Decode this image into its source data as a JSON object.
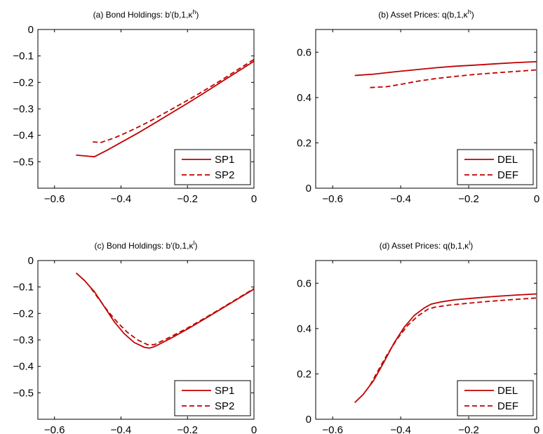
{
  "chart_data": [
    {
      "type": "line",
      "title": "(a) Bond Holdings: b′(b,1,κ",
      "title_sup": "h",
      "title_end": ")",
      "xlim": [
        -0.65,
        0
      ],
      "ylim": [
        -0.6,
        0
      ],
      "xticks": [
        -0.6,
        -0.4,
        -0.2,
        0
      ],
      "xtick_labels": [
        "−0.6",
        "−0.4",
        "−0.2",
        "0"
      ],
      "yticks": [
        0,
        -0.1,
        -0.2,
        -0.3,
        -0.4,
        -0.5
      ],
      "ytick_labels": [
        "0",
        "−0.1",
        "−0.2",
        "−0.3",
        "−0.4",
        "−0.5"
      ],
      "legend": "bottom-right",
      "color": "#c00000",
      "series": [
        {
          "name": "SP1",
          "style": "solid",
          "x": [
            -0.535,
            -0.48,
            -0.44,
            -0.4,
            -0.35,
            -0.3,
            -0.25,
            -0.2,
            -0.15,
            -0.1,
            -0.05,
            0
          ],
          "y": [
            -0.475,
            -0.481,
            -0.455,
            -0.427,
            -0.392,
            -0.355,
            -0.317,
            -0.279,
            -0.24,
            -0.2,
            -0.16,
            -0.12
          ]
        },
        {
          "name": "SP2",
          "style": "dashed",
          "x": [
            -0.485,
            -0.46,
            -0.42,
            -0.38,
            -0.34,
            -0.3,
            -0.25,
            -0.2,
            -0.15,
            -0.1,
            -0.05,
            0
          ],
          "y": [
            -0.425,
            -0.427,
            -0.41,
            -0.388,
            -0.364,
            -0.338,
            -0.303,
            -0.268,
            -0.231,
            -0.193,
            -0.153,
            -0.113
          ]
        }
      ]
    },
    {
      "type": "line",
      "title": "(b) Asset Prices: q(b,1,κ",
      "title_sup": "h",
      "title_end": ")",
      "xlim": [
        -0.65,
        0
      ],
      "ylim": [
        0,
        0.7
      ],
      "xticks": [
        -0.6,
        -0.4,
        -0.2,
        0
      ],
      "xtick_labels": [
        "−0.6",
        "−0.4",
        "−0.2",
        "0"
      ],
      "yticks": [
        0,
        0.2,
        0.4,
        0.6
      ],
      "ytick_labels": [
        "0",
        "0.2",
        "0.4",
        "0.6"
      ],
      "legend": "bottom-right",
      "color": "#c00000",
      "series": [
        {
          "name": "DEL",
          "style": "solid",
          "x": [
            -0.535,
            -0.48,
            -0.42,
            -0.36,
            -0.3,
            -0.24,
            -0.18,
            -0.12,
            -0.06,
            0
          ],
          "y": [
            0.497,
            0.503,
            0.513,
            0.522,
            0.531,
            0.538,
            0.543,
            0.549,
            0.554,
            0.558
          ]
        },
        {
          "name": "DEF",
          "style": "dashed",
          "x": [
            -0.49,
            -0.44,
            -0.4,
            -0.35,
            -0.3,
            -0.24,
            -0.18,
            -0.12,
            -0.06,
            0
          ],
          "y": [
            0.444,
            0.448,
            0.458,
            0.472,
            0.483,
            0.493,
            0.502,
            0.509,
            0.515,
            0.522
          ]
        }
      ]
    },
    {
      "type": "line",
      "title": "(c) Bond Holdings: b′(b,1,κ",
      "title_sup": "l",
      "title_end": ")",
      "xlim": [
        -0.65,
        0
      ],
      "ylim": [
        -0.6,
        0
      ],
      "xticks": [
        -0.6,
        -0.4,
        -0.2,
        0
      ],
      "xtick_labels": [
        "−0.6",
        "−0.4",
        "−0.2",
        "0"
      ],
      "yticks": [
        0,
        -0.1,
        -0.2,
        -0.3,
        -0.4,
        -0.5
      ],
      "ytick_labels": [
        "0",
        "−0.1",
        "−0.2",
        "−0.3",
        "−0.4",
        "−0.5"
      ],
      "legend": "bottom-right",
      "color": "#c00000",
      "series": [
        {
          "name": "SP1",
          "style": "solid",
          "x": [
            -0.535,
            -0.51,
            -0.48,
            -0.45,
            -0.42,
            -0.39,
            -0.36,
            -0.33,
            -0.315,
            -0.3,
            -0.25,
            -0.2,
            -0.15,
            -0.1,
            -0.05,
            0
          ],
          "y": [
            -0.047,
            -0.075,
            -0.118,
            -0.175,
            -0.232,
            -0.277,
            -0.31,
            -0.328,
            -0.331,
            -0.326,
            -0.294,
            -0.259,
            -0.222,
            -0.184,
            -0.146,
            -0.108
          ]
        },
        {
          "name": "SP2",
          "style": "dashed",
          "x": [
            -0.49,
            -0.47,
            -0.44,
            -0.41,
            -0.38,
            -0.35,
            -0.32,
            -0.3,
            -0.25,
            -0.2,
            -0.15,
            -0.1,
            -0.05,
            0
          ],
          "y": [
            -0.105,
            -0.14,
            -0.19,
            -0.235,
            -0.272,
            -0.3,
            -0.318,
            -0.318,
            -0.288,
            -0.255,
            -0.219,
            -0.182,
            -0.144,
            -0.106
          ]
        }
      ]
    },
    {
      "type": "line",
      "title": "(d) Asset Prices: q(b,1,κ",
      "title_sup": "l",
      "title_end": ")",
      "xlim": [
        -0.65,
        0
      ],
      "ylim": [
        0,
        0.7
      ],
      "xticks": [
        -0.6,
        -0.4,
        -0.2,
        0
      ],
      "xtick_labels": [
        "−0.6",
        "−0.4",
        "−0.2",
        "0"
      ],
      "yticks": [
        0,
        0.2,
        0.4,
        0.6
      ],
      "ytick_labels": [
        "0",
        "0.2",
        "0.4",
        "0.6"
      ],
      "legend": "bottom-right",
      "color": "#c00000",
      "series": [
        {
          "name": "DEL",
          "style": "solid",
          "x": [
            -0.535,
            -0.51,
            -0.48,
            -0.45,
            -0.42,
            -0.39,
            -0.36,
            -0.33,
            -0.31,
            -0.28,
            -0.24,
            -0.18,
            -0.12,
            -0.06,
            0
          ],
          "y": [
            0.073,
            0.11,
            0.17,
            0.25,
            0.335,
            0.405,
            0.458,
            0.492,
            0.508,
            0.518,
            0.527,
            0.535,
            0.542,
            0.548,
            0.553
          ]
        },
        {
          "name": "DEF",
          "style": "dashed",
          "x": [
            -0.49,
            -0.47,
            -0.44,
            -0.41,
            -0.38,
            -0.35,
            -0.32,
            -0.3,
            -0.26,
            -0.2,
            -0.14,
            -0.08,
            0
          ],
          "y": [
            0.15,
            0.205,
            0.285,
            0.355,
            0.413,
            0.455,
            0.485,
            0.494,
            0.503,
            0.512,
            0.52,
            0.527,
            0.535
          ]
        }
      ]
    }
  ]
}
